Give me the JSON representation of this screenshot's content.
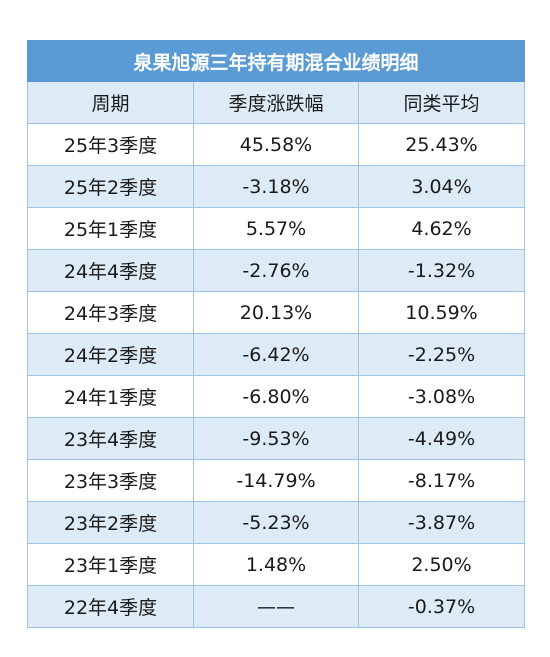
{
  "title": "泉果旭源三年持有期混合业绩明细",
  "headers": [
    "周期",
    "季度涨跌幅",
    "同类平均"
  ],
  "rows": [
    [
      "25年3季度",
      "45.58%",
      "25.43%"
    ],
    [
      "25年2季度",
      "-3.18%",
      "3.04%"
    ],
    [
      "25年1季度",
      "5.57%",
      "4.62%"
    ],
    [
      "24年4季度",
      "-2.76%",
      "-1.32%"
    ],
    [
      "24年3季度",
      "20.13%",
      "10.59%"
    ],
    [
      "24年2季度",
      "-6.42%",
      "-2.25%"
    ],
    [
      "24年1季度",
      "-6.80%",
      "-3.08%"
    ],
    [
      "23年4季度",
      "-9.53%",
      "-4.49%"
    ],
    [
      "23年3季度",
      "-14.79%",
      "-8.17%"
    ],
    [
      "23年2季度",
      "-5.23%",
      "-3.87%"
    ],
    [
      "23年1季度",
      "1.48%",
      "2.50%"
    ],
    [
      "22年4季度",
      "——",
      "-0.37%"
    ]
  ],
  "colors": {
    "title_bg": "#5b9bd5",
    "header_bg": "#ddebf7",
    "stripe_bg": "#ddebf7",
    "border": "#9dc3e6"
  }
}
